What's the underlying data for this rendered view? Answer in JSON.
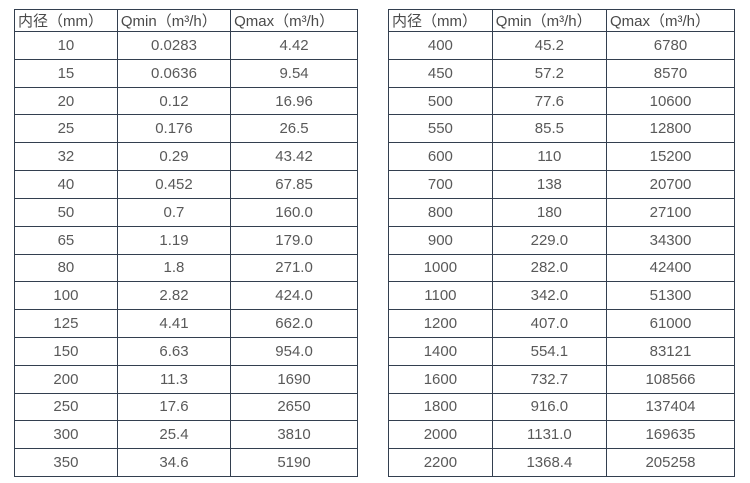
{
  "chart_data": [
    {
      "type": "table",
      "title": "",
      "columns": [
        "内径（mm）",
        "Qmin（m³/h）",
        "Qmax（m³/h）"
      ],
      "rows": [
        [
          "10",
          "0.0283",
          "4.42"
        ],
        [
          "15",
          "0.0636",
          "9.54"
        ],
        [
          "20",
          "0.12",
          "16.96"
        ],
        [
          "25",
          "0.176",
          "26.5"
        ],
        [
          "32",
          "0.29",
          "43.42"
        ],
        [
          "40",
          "0.452",
          "67.85"
        ],
        [
          "50",
          "0.7",
          "160.0"
        ],
        [
          "65",
          "1.19",
          "179.0"
        ],
        [
          "80",
          "1.8",
          "271.0"
        ],
        [
          "100",
          "2.82",
          "424.0"
        ],
        [
          "125",
          "4.41",
          "662.0"
        ],
        [
          "150",
          "6.63",
          "954.0"
        ],
        [
          "200",
          "11.3",
          "1690"
        ],
        [
          "250",
          "17.6",
          "2650"
        ],
        [
          "300",
          "25.4",
          "3810"
        ],
        [
          "350",
          "34.6",
          "5190"
        ]
      ]
    },
    {
      "type": "table",
      "title": "",
      "columns": [
        "内径（mm）",
        "Qmin（m³/h）",
        "Qmax（m³/h）"
      ],
      "rows": [
        [
          "400",
          "45.2",
          "6780"
        ],
        [
          "450",
          "57.2",
          "8570"
        ],
        [
          "500",
          "77.6",
          "10600"
        ],
        [
          "550",
          "85.5",
          "12800"
        ],
        [
          "600",
          "110",
          "15200"
        ],
        [
          "700",
          "138",
          "20700"
        ],
        [
          "800",
          "180",
          "27100"
        ],
        [
          "900",
          "229.0",
          "34300"
        ],
        [
          "1000",
          "282.0",
          "42400"
        ],
        [
          "1100",
          "342.0",
          "51300"
        ],
        [
          "1200",
          "407.0",
          "61000"
        ],
        [
          "1400",
          "554.1",
          "83121"
        ],
        [
          "1600",
          "732.7",
          "108566"
        ],
        [
          "1800",
          "916.0",
          "137404"
        ],
        [
          "2000",
          "1131.0",
          "169635"
        ],
        [
          "2200",
          "1368.4",
          "205258"
        ]
      ]
    }
  ],
  "colors": {
    "border": "#333f4f",
    "text": "#595959",
    "header_text": "#4a4a4a",
    "background": "#ffffff"
  }
}
